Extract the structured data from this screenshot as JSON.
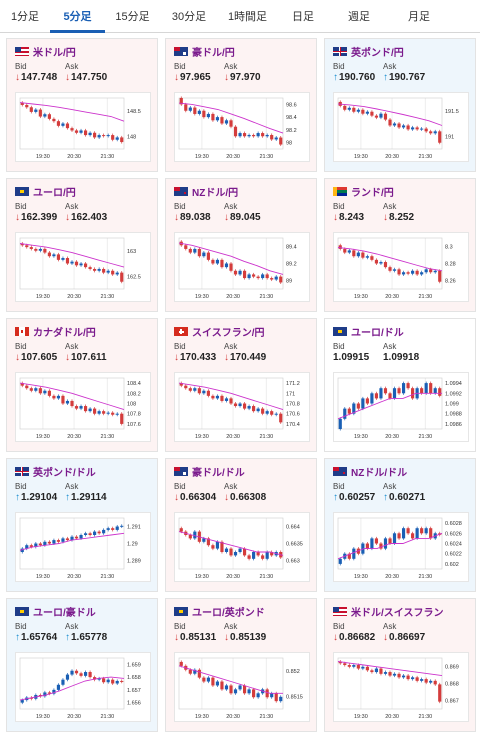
{
  "tabs": [
    {
      "label": "1分足",
      "active": false
    },
    {
      "label": "5分足",
      "active": true
    },
    {
      "label": "15分足",
      "active": false
    },
    {
      "label": "30分足",
      "active": false
    },
    {
      "label": "1時間足",
      "active": false
    },
    {
      "label": "日足",
      "active": false
    },
    {
      "label": "週足",
      "active": false
    },
    {
      "label": "月足",
      "active": false
    }
  ],
  "bid_label": "Bid",
  "ask_label": "Ask",
  "colors": {
    "up_candle": "#1a5fb4",
    "down_candle": "#d43c3c",
    "ma_line": "#cc33cc",
    "title": "#7a1a8c"
  },
  "panels": [
    {
      "title": "米ドル/円",
      "flag": "us",
      "trend": "down",
      "bid": "147.748",
      "ask": "147.750",
      "chart_data": {
        "type": "candlestick",
        "x_ticks": [
          "19:30",
          "20:30",
          "21:30"
        ],
        "y_ticks": [
          "148.5",
          "148"
        ],
        "ylim": [
          147.6,
          148.7
        ],
        "close": [
          148.55,
          148.5,
          148.4,
          148.45,
          148.3,
          148.35,
          148.25,
          148.2,
          148.1,
          148.15,
          148.05,
          148.0,
          147.95,
          148.0,
          147.9,
          147.95,
          147.85,
          147.9,
          147.88,
          147.9,
          147.8,
          147.85,
          147.75
        ],
        "ma": [
          148.6,
          148.57,
          148.54,
          148.5,
          148.45,
          148.4,
          148.35,
          148.3,
          148.2
        ]
      }
    },
    {
      "title": "豪ドル/円",
      "flag": "au",
      "trend": "down",
      "bid": "97.965",
      "ask": "97.970",
      "chart_data": {
        "type": "candlestick",
        "x_ticks": [
          "19:30",
          "20:30",
          "21:30"
        ],
        "y_ticks": [
          "98.6",
          "98.4",
          "98.2",
          "98"
        ],
        "ylim": [
          97.9,
          98.7
        ],
        "close": [
          98.6,
          98.5,
          98.55,
          98.45,
          98.5,
          98.4,
          98.45,
          98.35,
          98.4,
          98.3,
          98.35,
          98.25,
          98.1,
          98.15,
          98.1,
          98.12,
          98.1,
          98.15,
          98.1,
          98.12,
          98.05,
          98.08,
          97.97
        ],
        "ma": [
          98.62,
          98.6,
          98.56,
          98.52,
          98.45,
          98.38,
          98.3,
          98.22,
          98.15
        ]
      }
    },
    {
      "title": "英ポンド/円",
      "flag": "uk",
      "trend": "up",
      "bid": "190.760",
      "ask": "190.767",
      "chart_data": {
        "type": "candlestick",
        "x_ticks": [
          "19:30",
          "20:30",
          "21:30"
        ],
        "y_ticks": [
          "191.5",
          "191"
        ],
        "ylim": [
          190.6,
          191.9
        ],
        "close": [
          191.7,
          191.6,
          191.65,
          191.55,
          191.6,
          191.5,
          191.55,
          191.45,
          191.4,
          191.5,
          191.35,
          191.2,
          191.25,
          191.15,
          191.2,
          191.1,
          191.15,
          191.1,
          191.12,
          191.05,
          191.0,
          191.05,
          190.76
        ],
        "ma": [
          191.75,
          191.72,
          191.68,
          191.62,
          191.55,
          191.48,
          191.4,
          191.32,
          191.2
        ]
      }
    },
    {
      "title": "ユーロ/円",
      "flag": "eu",
      "trend": "down",
      "bid": "162.399",
      "ask": "162.403",
      "chart_data": {
        "type": "candlestick",
        "x_ticks": [
          "19:30",
          "20:30",
          "21:30"
        ],
        "y_ticks": [
          "163",
          "162.5"
        ],
        "ylim": [
          162.2,
          163.6
        ],
        "close": [
          163.4,
          163.35,
          163.3,
          163.25,
          163.3,
          163.2,
          163.1,
          163.15,
          163.0,
          163.05,
          162.9,
          162.95,
          162.85,
          162.9,
          162.8,
          162.75,
          162.7,
          162.75,
          162.65,
          162.7,
          162.6,
          162.65,
          162.4
        ],
        "ma": [
          163.45,
          163.4,
          163.35,
          163.28,
          163.2,
          163.1,
          163.0,
          162.9,
          162.8
        ]
      }
    },
    {
      "title": "NZドル/円",
      "flag": "nz",
      "trend": "down",
      "bid": "89.038",
      "ask": "89.045",
      "chart_data": {
        "type": "candlestick",
        "x_ticks": [
          "19:30",
          "20:30",
          "21:30"
        ],
        "y_ticks": [
          "89.4",
          "89.2",
          "89"
        ],
        "ylim": [
          88.95,
          89.65
        ],
        "close": [
          89.55,
          89.5,
          89.45,
          89.5,
          89.4,
          89.45,
          89.35,
          89.3,
          89.35,
          89.25,
          89.3,
          89.2,
          89.15,
          89.2,
          89.1,
          89.15,
          89.12,
          89.1,
          89.15,
          89.1,
          89.08,
          89.12,
          89.04
        ],
        "ma": [
          89.58,
          89.55,
          89.5,
          89.45,
          89.4,
          89.33,
          89.27,
          89.2,
          89.15
        ]
      }
    },
    {
      "title": "ランド/円",
      "flag": "za",
      "trend": "down",
      "bid": "8.243",
      "ask": "8.252",
      "chart_data": {
        "type": "candlestick",
        "x_ticks": [
          "19:30",
          "20:30",
          "21:30"
        ],
        "y_ticks": [
          "8.3",
          "8.28",
          "8.26"
        ],
        "ylim": [
          8.235,
          8.305
        ],
        "close": [
          8.29,
          8.285,
          8.288,
          8.28,
          8.285,
          8.278,
          8.28,
          8.275,
          8.27,
          8.272,
          8.265,
          8.26,
          8.262,
          8.255,
          8.258,
          8.256,
          8.26,
          8.255,
          8.258,
          8.262,
          8.258,
          8.26,
          8.245
        ],
        "ma": [
          8.292,
          8.29,
          8.287,
          8.283,
          8.278,
          8.273,
          8.268,
          8.263,
          8.26
        ]
      }
    },
    {
      "title": "カナダドル/円",
      "flag": "ca",
      "trend": "down",
      "bid": "107.605",
      "ask": "107.611",
      "chart_data": {
        "type": "candlestick",
        "x_ticks": [
          "19:30",
          "20:30",
          "21:30"
        ],
        "y_ticks": [
          "108.4",
          "108.2",
          "108",
          "107.8",
          "107.6"
        ],
        "ylim": [
          107.5,
          108.5
        ],
        "close": [
          108.35,
          108.3,
          108.25,
          108.3,
          108.2,
          108.25,
          108.15,
          108.1,
          108.15,
          108.0,
          108.05,
          107.95,
          107.9,
          107.95,
          107.85,
          107.9,
          107.8,
          107.85,
          107.8,
          107.82,
          107.78,
          107.8,
          107.6
        ],
        "ma": [
          108.4,
          108.36,
          108.32,
          108.26,
          108.2,
          108.12,
          108.04,
          107.96,
          107.88
        ]
      }
    },
    {
      "title": "スイスフラン/円",
      "flag": "ch",
      "trend": "down",
      "bid": "170.433",
      "ask": "170.449",
      "chart_data": {
        "type": "candlestick",
        "x_ticks": [
          "19:30",
          "20:30",
          "21:30"
        ],
        "y_ticks": [
          "171.2",
          "171",
          "170.8",
          "170.6",
          "170.4"
        ],
        "ylim": [
          170.3,
          171.3
        ],
        "close": [
          171.15,
          171.1,
          171.05,
          171.1,
          171.0,
          171.05,
          170.95,
          170.9,
          170.95,
          170.85,
          170.9,
          170.8,
          170.75,
          170.8,
          170.7,
          170.75,
          170.65,
          170.7,
          170.6,
          170.65,
          170.58,
          170.6,
          170.43
        ],
        "ma": [
          171.2,
          171.16,
          171.12,
          171.06,
          171.0,
          170.92,
          170.84,
          170.76,
          170.68
        ]
      }
    },
    {
      "title": "ユーロ/ドル",
      "flag": "eu",
      "trend": "none",
      "bid": "1.09915",
      "ask": "1.09918",
      "chart_data": {
        "type": "candlestick",
        "x_ticks": [
          "19:30",
          "20:30",
          "21:30"
        ],
        "y_ticks": [
          "1.0994",
          "1.0992",
          "1.099",
          "1.0988",
          "1.0986"
        ],
        "ylim": [
          1.0985,
          1.0995
        ],
        "close": [
          1.0987,
          1.0989,
          1.0988,
          1.099,
          1.0989,
          1.0991,
          1.099,
          1.0992,
          1.0991,
          1.0993,
          1.0992,
          1.0991,
          1.0993,
          1.0992,
          1.0994,
          1.0993,
          1.0991,
          1.0993,
          1.0992,
          1.0994,
          1.0992,
          1.0993,
          1.09915
        ],
        "ma": [
          1.0987,
          1.0988,
          1.0989,
          1.099,
          1.0991,
          1.0991,
          1.0992,
          1.0992,
          1.0992
        ]
      }
    },
    {
      "title": "英ポンド/ドル",
      "flag": "uk",
      "trend": "up",
      "bid": "1.29104",
      "ask": "1.29114",
      "chart_data": {
        "type": "candlestick",
        "x_ticks": [
          "19:30",
          "20:30",
          "21:30"
        ],
        "y_ticks": [
          "1.291",
          "1.29",
          "1.289"
        ],
        "ylim": [
          1.2885,
          1.2915
        ],
        "close": [
          1.2897,
          1.2899,
          1.2898,
          1.29,
          1.2899,
          1.2901,
          1.29,
          1.2902,
          1.2901,
          1.2903,
          1.2902,
          1.2904,
          1.2903,
          1.2905,
          1.2906,
          1.2905,
          1.2907,
          1.2906,
          1.2908,
          1.2909,
          1.2908,
          1.291,
          1.29104
        ],
        "ma": [
          1.2896,
          1.2898,
          1.2899,
          1.29,
          1.2902,
          1.2903,
          1.2904,
          1.2905,
          1.2906
        ]
      }
    },
    {
      "title": "豪ドル/ドル",
      "flag": "au",
      "trend": "down",
      "bid": "0.66304",
      "ask": "0.66308",
      "chart_data": {
        "type": "candlestick",
        "x_ticks": [
          "19:30",
          "20:30",
          "21:30"
        ],
        "y_ticks": [
          "0.664",
          "0.6635",
          "0.663"
        ],
        "ylim": [
          0.6627,
          0.6642
        ],
        "close": [
          0.6638,
          0.6637,
          0.6636,
          0.6638,
          0.6635,
          0.6636,
          0.6634,
          0.6633,
          0.6635,
          0.6632,
          0.6633,
          0.6631,
          0.6632,
          0.6633,
          0.6631,
          0.663,
          0.6632,
          0.6631,
          0.663,
          0.6632,
          0.6631,
          0.6632,
          0.66304
        ],
        "ma": [
          0.6638,
          0.6637,
          0.6636,
          0.6635,
          0.6634,
          0.6633,
          0.6632,
          0.6632,
          0.6631
        ]
      }
    },
    {
      "title": "NZドル/ドル",
      "flag": "nz",
      "trend": "up",
      "bid": "0.60257",
      "ask": "0.60271",
      "chart_data": {
        "type": "candlestick",
        "x_ticks": [
          "19:30",
          "20:30",
          "21:30"
        ],
        "y_ticks": [
          "0.6028",
          "0.6026",
          "0.6024",
          "0.6022",
          "0.602"
        ],
        "ylim": [
          0.6019,
          0.6029
        ],
        "close": [
          0.6021,
          0.6022,
          0.6021,
          0.6023,
          0.6022,
          0.6024,
          0.6023,
          0.6025,
          0.6024,
          0.6023,
          0.6025,
          0.6024,
          0.6026,
          0.6025,
          0.6027,
          0.6026,
          0.6025,
          0.6027,
          0.6026,
          0.6027,
          0.6025,
          0.6026,
          0.60257
        ],
        "ma": [
          0.6021,
          0.6022,
          0.6023,
          0.6023,
          0.6024,
          0.6024,
          0.6025,
          0.6025,
          0.6026
        ]
      }
    },
    {
      "title": "ユーロ/豪ドル",
      "flag": "eu",
      "trend": "up",
      "bid": "1.65764",
      "ask": "1.65778",
      "chart_data": {
        "type": "candlestick",
        "x_ticks": [
          "19:30",
          "20:30",
          "21:30"
        ],
        "y_ticks": [
          "1.659",
          "1.658",
          "1.657",
          "1.656"
        ],
        "ylim": [
          1.6555,
          1.6595
        ],
        "close": [
          1.6562,
          1.6564,
          1.6563,
          1.6566,
          1.6565,
          1.6568,
          1.6567,
          1.657,
          1.6574,
          1.6578,
          1.6582,
          1.6585,
          1.6583,
          1.6581,
          1.6584,
          1.658,
          1.6578,
          1.6579,
          1.6576,
          1.6578,
          1.6575,
          1.6577,
          1.65764
        ],
        "ma": [
          1.6562,
          1.6564,
          1.6566,
          1.6569,
          1.6573,
          1.6577,
          1.6579,
          1.658,
          1.6579
        ]
      }
    },
    {
      "title": "ユーロ/英ポンド",
      "flag": "eu",
      "trend": "down",
      "bid": "0.85131",
      "ask": "0.85139",
      "chart_data": {
        "type": "candlestick",
        "x_ticks": [
          "19:30",
          "20:30",
          "21:30"
        ],
        "y_ticks": [
          "0.852",
          "0.8515"
        ],
        "ylim": [
          0.851,
          0.8523
        ],
        "close": [
          0.8521,
          0.852,
          0.8519,
          0.852,
          0.8518,
          0.8517,
          0.8518,
          0.8516,
          0.8517,
          0.8515,
          0.8516,
          0.8514,
          0.8515,
          0.8516,
          0.8514,
          0.8515,
          0.8513,
          0.8514,
          0.8515,
          0.8513,
          0.8514,
          0.8512,
          0.85131
        ],
        "ma": [
          0.8521,
          0.852,
          0.8519,
          0.8518,
          0.8517,
          0.8516,
          0.8515,
          0.8514,
          0.8514
        ]
      }
    },
    {
      "title": "米ドル/スイスフラン",
      "flag": "us",
      "trend": "down",
      "bid": "0.86682",
      "ask": "0.86697",
      "chart_data": {
        "type": "candlestick",
        "x_ticks": [
          "19:30",
          "20:30",
          "21:30"
        ],
        "y_ticks": [
          "0.869",
          "0.868",
          "0.867"
        ],
        "ylim": [
          0.8664,
          0.8693
        ],
        "close": [
          0.869,
          0.8689,
          0.8688,
          0.8689,
          0.8687,
          0.8688,
          0.8686,
          0.8685,
          0.8687,
          0.8684,
          0.8685,
          0.8683,
          0.8684,
          0.8682,
          0.8683,
          0.8681,
          0.8682,
          0.868,
          0.8681,
          0.8679,
          0.868,
          0.8678,
          0.86682
        ],
        "ma": [
          0.8691,
          0.869,
          0.8689,
          0.8688,
          0.8687,
          0.8686,
          0.8685,
          0.8684,
          0.8683
        ]
      }
    }
  ]
}
